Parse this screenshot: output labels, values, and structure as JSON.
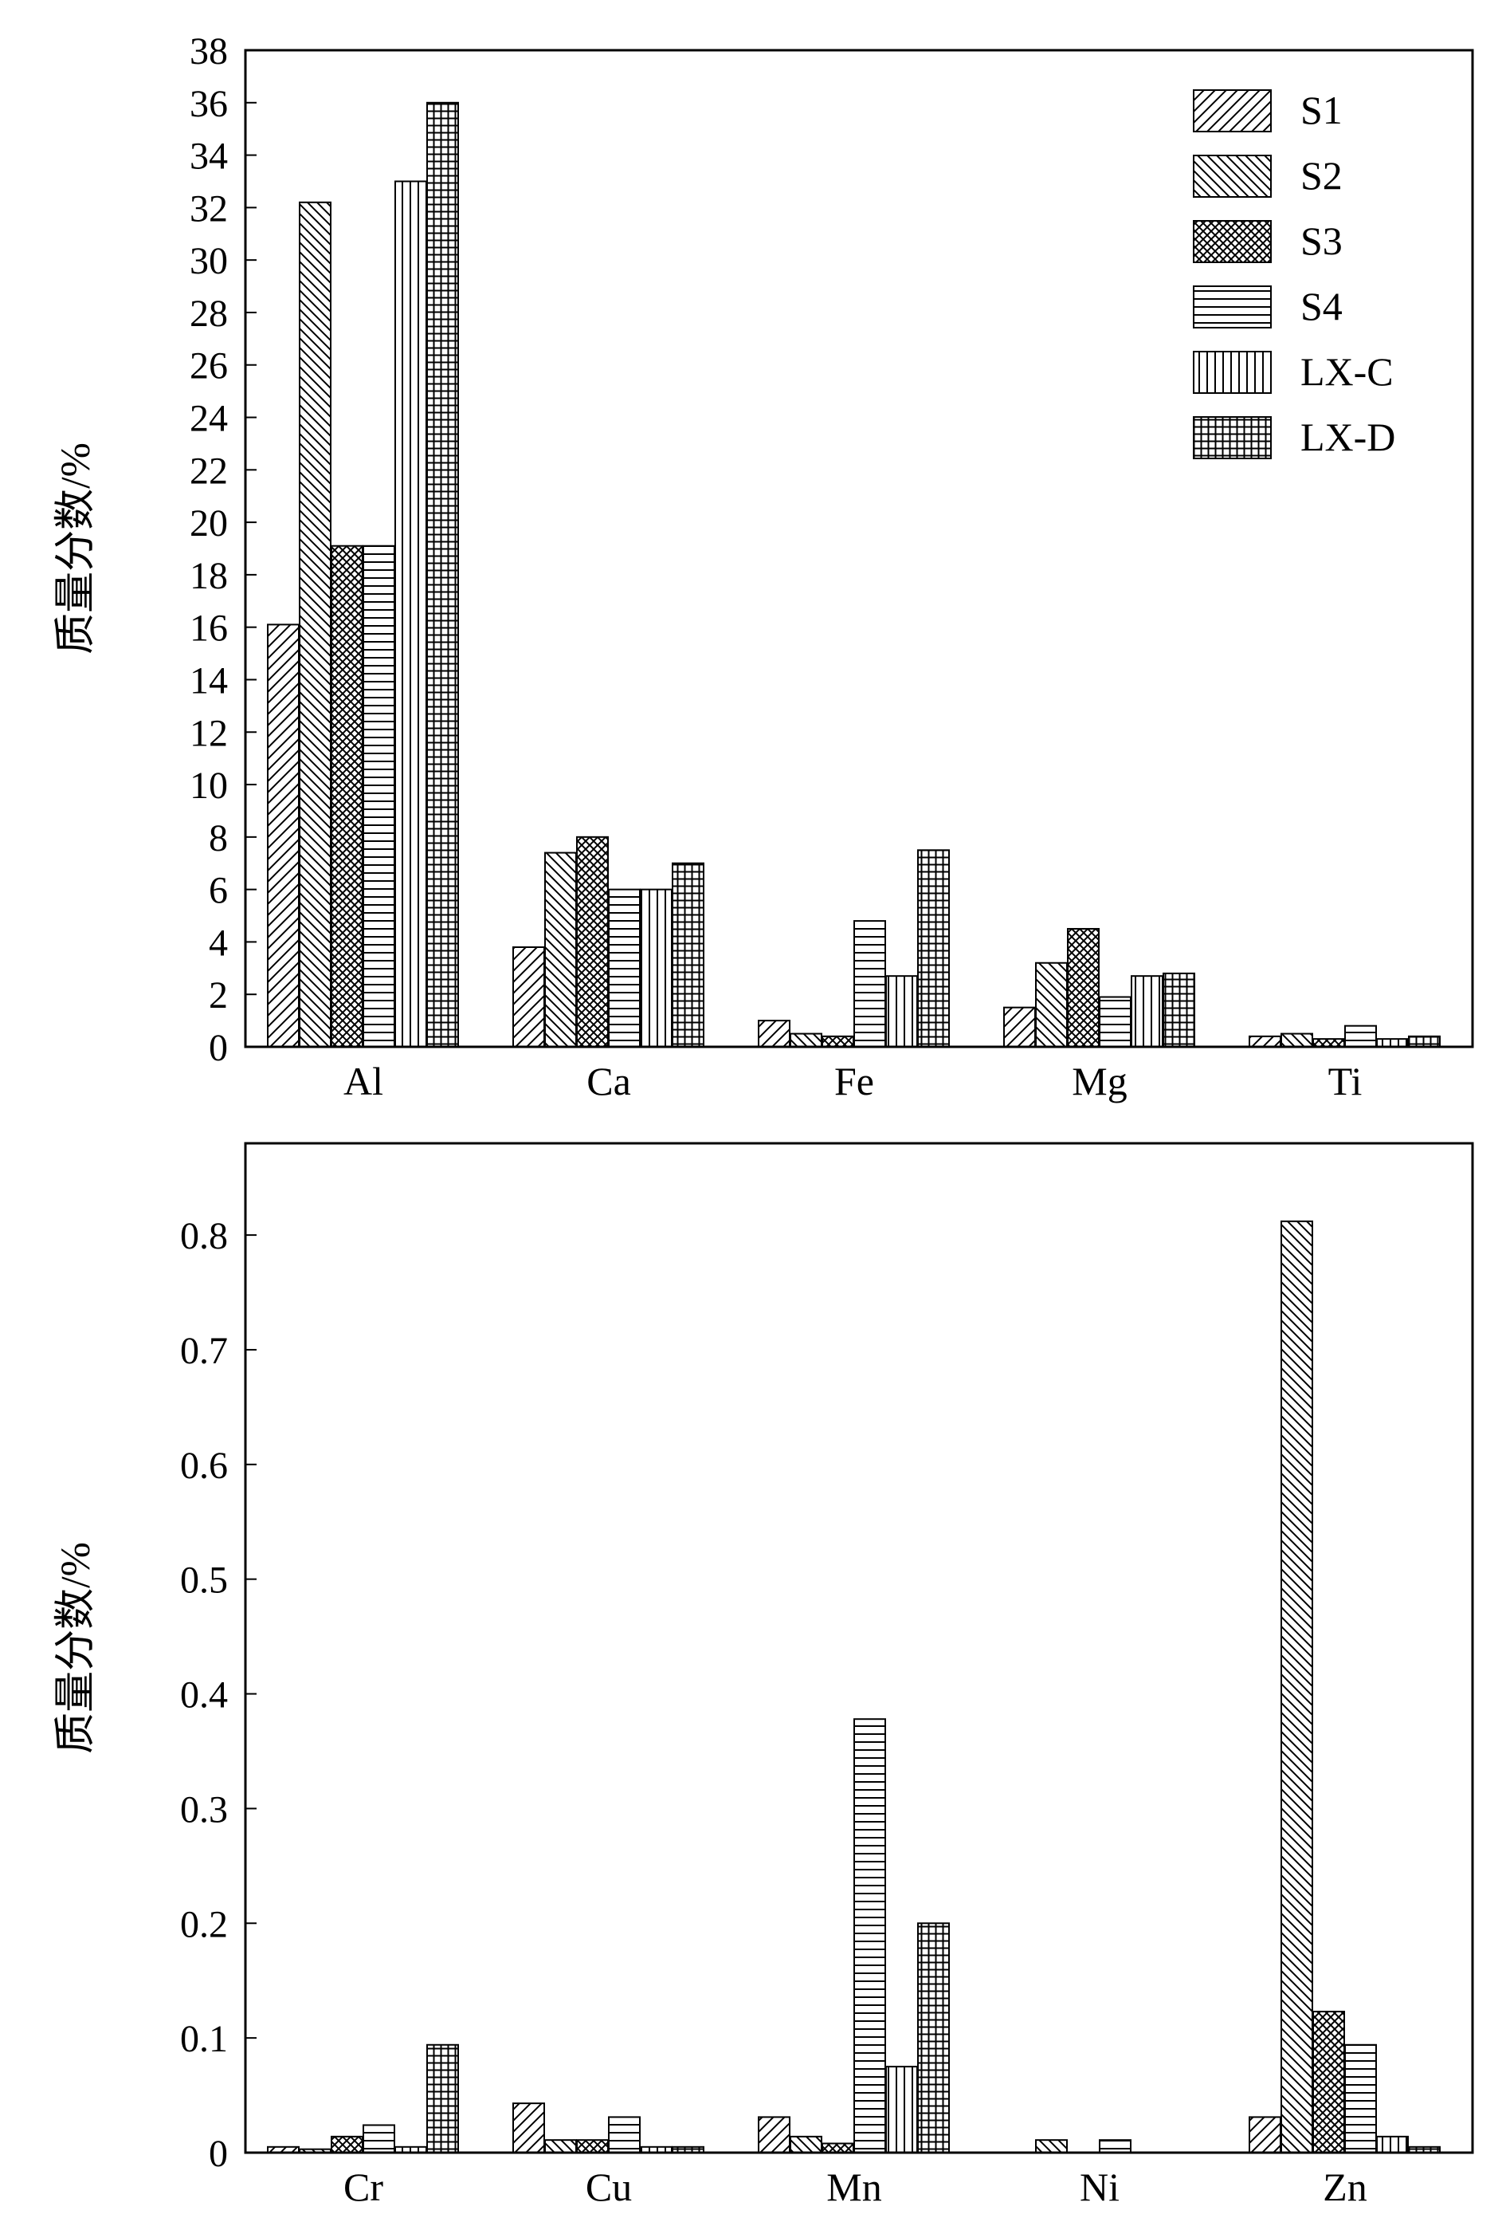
{
  "colors": {
    "axis": "#000000",
    "bar_fill": "#ffffff",
    "pattern": "#000000"
  },
  "legend": {
    "placement": "top-right"
  },
  "series_patterns": [
    "diag-right",
    "diag-left",
    "crosshatch",
    "horizontal",
    "vertical",
    "grid"
  ],
  "chart_data": [
    {
      "type": "bar",
      "title": "",
      "xlabel": "",
      "ylabel": "质量分数/%",
      "ylim": [
        0,
        38
      ],
      "yticks": [
        "0",
        "2",
        "4",
        "6",
        "8",
        "10",
        "12",
        "14",
        "16",
        "18",
        "20",
        "22",
        "24",
        "26",
        "28",
        "30",
        "32",
        "34",
        "36",
        "38"
      ],
      "grid": false,
      "legend": "top-right",
      "categories": [
        "Al",
        "Ca",
        "Fe",
        "Mg",
        "Ti"
      ],
      "series": [
        {
          "name": "S1",
          "values": [
            16.1,
            3.8,
            1.0,
            1.5,
            0.4
          ]
        },
        {
          "name": "S2",
          "values": [
            32.2,
            7.4,
            0.5,
            3.2,
            0.5
          ]
        },
        {
          "name": "S3",
          "values": [
            19.1,
            8.0,
            0.4,
            4.5,
            0.3
          ]
        },
        {
          "name": "S4",
          "values": [
            19.1,
            6.0,
            4.8,
            1.9,
            0.8
          ]
        },
        {
          "name": "LX-C",
          "values": [
            33.0,
            6.0,
            2.7,
            2.7,
            0.3
          ]
        },
        {
          "name": "LX-D",
          "values": [
            36.0,
            7.0,
            7.5,
            2.8,
            0.4
          ]
        }
      ]
    },
    {
      "type": "bar",
      "title": "",
      "xlabel": "",
      "ylabel": "质量分数/%",
      "ylim": [
        0,
        0.88
      ],
      "yticks": [
        "0",
        "0.1",
        "0.2",
        "0.3",
        "0.4",
        "0.5",
        "0.6",
        "0.7",
        "0.8"
      ],
      "grid": false,
      "categories": [
        "Cr",
        "Cu",
        "Mn",
        "Ni",
        "Zn"
      ],
      "series": [
        {
          "name": "S1",
          "values": [
            0.005,
            0.043,
            0.031,
            0.0,
            0.031
          ]
        },
        {
          "name": "S2",
          "values": [
            0.003,
            0.011,
            0.014,
            0.011,
            0.812
          ]
        },
        {
          "name": "S3",
          "values": [
            0.014,
            0.011,
            0.008,
            0.0,
            0.123
          ]
        },
        {
          "name": "S4",
          "values": [
            0.024,
            0.031,
            0.378,
            0.011,
            0.094
          ]
        },
        {
          "name": "LX-C",
          "values": [
            0.005,
            0.005,
            0.075,
            0.0,
            0.014
          ]
        },
        {
          "name": "LX-D",
          "values": [
            0.094,
            0.005,
            0.2,
            0.0,
            0.005
          ]
        }
      ]
    }
  ]
}
